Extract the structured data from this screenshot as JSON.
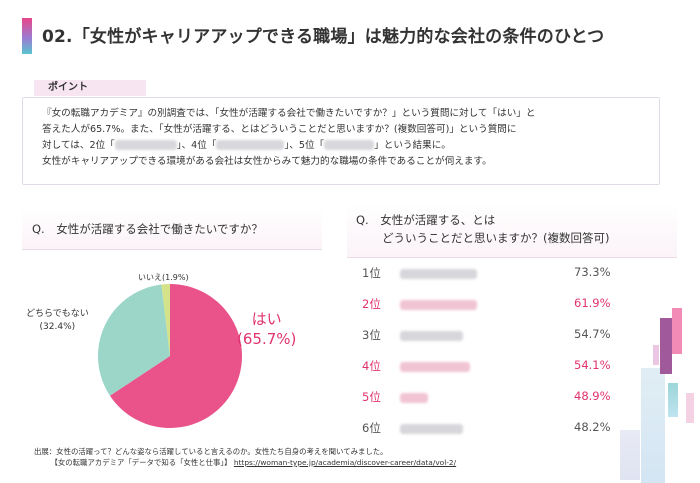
{
  "title": "02.「女性がキャリアアップできる職場」は魅力的な会社の条件のひとつ",
  "point": {
    "label": "ポイント",
    "line1": "『女の転職アカデミア』の別調査では、「女性が活躍する会社で働きたいですか？」という質問に対して「はい」と",
    "line2": "答えた人が65.7%。また、「女性が活躍する、とはどういうことだと思いますか？(複数回答可)」という質問に",
    "line3_a": "対しては、2位「",
    "line3_b": "」、4位「",
    "line3_c": "」、5位「",
    "line3_d": "」という結果に。",
    "line4": "女性がキャリアアップできる環境がある会社は女性からみて魅力的な職場の条件であることが伺えます。"
  },
  "q_left": "Q.　女性が活躍する会社で働きたいですか？",
  "q_right": {
    "line1": "Q.　女性が活躍する、とは",
    "line2": "どういうことだと思いますか？(複数回答可)"
  },
  "pie": {
    "slices": [
      {
        "label": "はい",
        "value": 65.7,
        "display": "(65.7%)",
        "color": "#e9538a"
      },
      {
        "label": "どちらでもない",
        "value": 32.4,
        "display": "(32.4%)",
        "color": "#9bd6c8"
      },
      {
        "label": "いいえ",
        "value": 1.9,
        "display": "(1.9%)",
        "color": "#d4e38a"
      }
    ],
    "no_label": "いいえ(1.9%)"
  },
  "ranking": [
    {
      "rank": "1位",
      "pct": "73.3%",
      "highlight": false,
      "fill": 0.55
    },
    {
      "rank": "2位",
      "pct": "61.9%",
      "highlight": true,
      "fill": 0.55
    },
    {
      "rank": "3位",
      "pct": "54.7%",
      "highlight": false,
      "fill": 0.45
    },
    {
      "rank": "4位",
      "pct": "54.1%",
      "highlight": true,
      "fill": 0.5
    },
    {
      "rank": "5位",
      "pct": "48.9%",
      "highlight": true,
      "fill": 0.2
    },
    {
      "rank": "6位",
      "pct": "48.2%",
      "highlight": false,
      "fill": 0.45
    }
  ],
  "source": {
    "line1": "出展：女性の活躍って？どんな姿なら活躍していると言えるのか。女性たち自身の考えを聞いてみました。",
    "line2_prefix": "【女の転職アカデミア「データで知る「女性と仕事」】",
    "url": "https://woman-type.jp/academia/discover-career/data/vol-2/"
  }
}
